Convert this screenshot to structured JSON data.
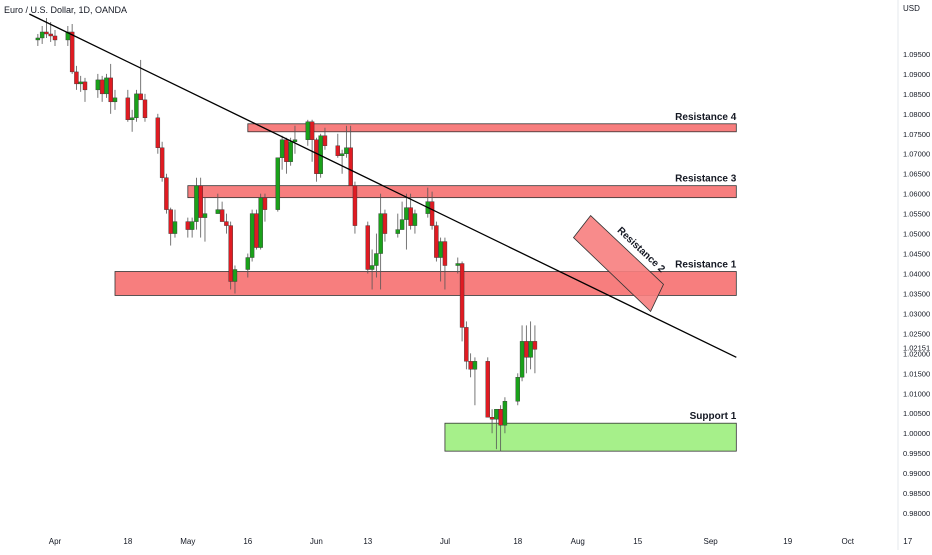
{
  "header": {
    "symbol_label": "Euro / U.S. Dollar, 1D, OANDA",
    "currency_label": "USD"
  },
  "colors": {
    "up": "#1aa11a",
    "down": "#e01b22",
    "resistance_fill": "#f77e7e",
    "resistance_stroke": "#333333",
    "support_fill": "#a6f08a",
    "trendline": "#000000",
    "axis_text": "#131722"
  },
  "chart_data": {
    "type": "candlestick",
    "title": "Euro / U.S. Dollar, 1D, OANDA",
    "ylabel": "USD",
    "ylim": [
      0.976,
      1.1035
    ],
    "y_ticks": [
      "1.09500",
      "1.09000",
      "1.08500",
      "1.08000",
      "1.07500",
      "1.07000",
      "1.06500",
      "1.06000",
      "1.05500",
      "1.05000",
      "1.04500",
      "1.04000",
      "1.03500",
      "1.03000",
      "1.02500",
      "1.02151",
      "1.02000",
      "1.01500",
      "1.01000",
      "1.00500",
      "1.00000",
      "0.99500",
      "0.99000",
      "0.98500",
      "0.98000"
    ],
    "last_price": "1.02151",
    "x_ticks": [
      {
        "label": "Apr",
        "date": "2022-04-01"
      },
      {
        "label": "18",
        "date": "2022-04-18"
      },
      {
        "label": "May",
        "date": "2022-05-02"
      },
      {
        "label": "16",
        "date": "2022-05-16"
      },
      {
        "label": "Jun",
        "date": "2022-06-01"
      },
      {
        "label": "13",
        "date": "2022-06-13"
      },
      {
        "label": "Jul",
        "date": "2022-07-01"
      },
      {
        "label": "18",
        "date": "2022-07-18"
      },
      {
        "label": "Aug",
        "date": "2022-08-01"
      },
      {
        "label": "15",
        "date": "2022-08-15"
      },
      {
        "label": "Sep",
        "date": "2022-09-01"
      },
      {
        "label": "19",
        "date": "2022-09-19"
      },
      {
        "label": "Oct",
        "date": "2022-10-03"
      },
      {
        "label": "17",
        "date": "2022-10-17"
      }
    ],
    "zones": [
      {
        "label": "Resistance 4",
        "kind": "resistance",
        "x_start": "2022-05-16",
        "x_end": "2022-09-07",
        "y_low": 1.0755,
        "y_high": 1.0775
      },
      {
        "label": "Resistance 3",
        "kind": "resistance",
        "x_start": "2022-05-02",
        "x_end": "2022-09-07",
        "y_low": 1.059,
        "y_high": 1.062
      },
      {
        "label": "Resistance 1",
        "kind": "resistance",
        "x_start": "2022-04-15",
        "x_end": "2022-09-07",
        "y_low": 1.0345,
        "y_high": 1.0405
      },
      {
        "label": "Support 1",
        "kind": "support",
        "x_start": "2022-07-01",
        "x_end": "2022-09-07",
        "y_low": 0.9955,
        "y_high": 1.0025
      }
    ],
    "rotated_zone": {
      "label": "Resistance 2",
      "corners": [
        [
          "2022-08-04",
          1.0545
        ],
        [
          "2022-08-21",
          1.0373
        ],
        [
          "2022-08-18",
          1.0305
        ],
        [
          "2022-07-31",
          1.049
        ]
      ]
    },
    "trendline": {
      "start": [
        "2022-03-26",
        1.105
      ],
      "end": [
        "2022-09-07",
        1.019
      ]
    },
    "candles": [
      {
        "date": "2022-03-28",
        "o": 1.0985,
        "h": 1.1,
        "l": 1.097,
        "c": 1.099
      },
      {
        "date": "2022-03-29",
        "o": 1.099,
        "h": 1.102,
        "l": 1.0975,
        "c": 1.1005
      },
      {
        "date": "2022-03-30",
        "o": 1.1005,
        "h": 1.104,
        "l": 1.099,
        "c": 1.1
      },
      {
        "date": "2022-03-31",
        "o": 1.1,
        "h": 1.103,
        "l": 1.098,
        "c": 1.0995
      },
      {
        "date": "2022-04-01",
        "o": 1.0995,
        "h": 1.101,
        "l": 1.097,
        "c": 1.0985
      },
      {
        "date": "2022-04-04",
        "o": 1.0985,
        "h": 1.102,
        "l": 1.097,
        "c": 1.1005
      },
      {
        "date": "2022-04-05",
        "o": 1.1005,
        "h": 1.1025,
        "l": 1.09,
        "c": 1.0905
      },
      {
        "date": "2022-04-06",
        "o": 1.0905,
        "h": 1.092,
        "l": 1.086,
        "c": 1.0875
      },
      {
        "date": "2022-04-07",
        "o": 1.0875,
        "h": 1.0895,
        "l": 1.0855,
        "c": 1.088
      },
      {
        "date": "2022-04-08",
        "o": 1.088,
        "h": 1.089,
        "l": 1.083,
        "c": 1.086
      },
      {
        "date": "2022-04-11",
        "o": 1.086,
        "h": 1.09,
        "l": 1.084,
        "c": 1.0885
      },
      {
        "date": "2022-04-12",
        "o": 1.0885,
        "h": 1.0895,
        "l": 1.083,
        "c": 1.085
      },
      {
        "date": "2022-04-13",
        "o": 1.085,
        "h": 1.09,
        "l": 1.084,
        "c": 1.089
      },
      {
        "date": "2022-04-14",
        "o": 1.089,
        "h": 1.0925,
        "l": 1.08,
        "c": 1.083
      },
      {
        "date": "2022-04-15",
        "o": 1.083,
        "h": 1.086,
        "l": 1.081,
        "c": 1.084
      },
      {
        "date": "2022-04-18",
        "o": 1.084,
        "h": 1.086,
        "l": 1.078,
        "c": 1.0785
      },
      {
        "date": "2022-04-19",
        "o": 1.0785,
        "h": 1.081,
        "l": 1.0755,
        "c": 1.079
      },
      {
        "date": "2022-04-20",
        "o": 1.079,
        "h": 1.086,
        "l": 1.078,
        "c": 1.085
      },
      {
        "date": "2022-04-21",
        "o": 1.085,
        "h": 1.0935,
        "l": 1.084,
        "c": 1.0835
      },
      {
        "date": "2022-04-22",
        "o": 1.0835,
        "h": 1.085,
        "l": 1.078,
        "c": 1.079
      },
      {
        "date": "2022-04-25",
        "o": 1.079,
        "h": 1.08,
        "l": 1.07,
        "c": 1.0715
      },
      {
        "date": "2022-04-26",
        "o": 1.0715,
        "h": 1.073,
        "l": 1.063,
        "c": 1.064
      },
      {
        "date": "2022-04-27",
        "o": 1.064,
        "h": 1.065,
        "l": 1.055,
        "c": 1.056
      },
      {
        "date": "2022-04-28",
        "o": 1.056,
        "h": 1.0565,
        "l": 1.047,
        "c": 1.05
      },
      {
        "date": "2022-04-29",
        "o": 1.05,
        "h": 1.056,
        "l": 1.049,
        "c": 1.053
      },
      {
        "date": "2022-05-02",
        "o": 1.053,
        "h": 1.054,
        "l": 1.049,
        "c": 1.051
      },
      {
        "date": "2022-05-03",
        "o": 1.051,
        "h": 1.054,
        "l": 1.049,
        "c": 1.053
      },
      {
        "date": "2022-05-04",
        "o": 1.053,
        "h": 1.064,
        "l": 1.051,
        "c": 1.062
      },
      {
        "date": "2022-05-05",
        "o": 1.062,
        "h": 1.064,
        "l": 1.049,
        "c": 1.054
      },
      {
        "date": "2022-05-06",
        "o": 1.054,
        "h": 1.059,
        "l": 1.048,
        "c": 1.055
      },
      {
        "date": "2022-05-09",
        "o": 1.055,
        "h": 1.06,
        "l": 1.055,
        "c": 1.056
      },
      {
        "date": "2022-05-10",
        "o": 1.056,
        "h": 1.058,
        "l": 1.053,
        "c": 1.053
      },
      {
        "date": "2022-05-11",
        "o": 1.053,
        "h": 1.055,
        "l": 1.05,
        "c": 1.052
      },
      {
        "date": "2022-05-12",
        "o": 1.052,
        "h": 1.053,
        "l": 1.036,
        "c": 1.038
      },
      {
        "date": "2022-05-13",
        "o": 1.038,
        "h": 1.042,
        "l": 1.035,
        "c": 1.041
      },
      {
        "date": "2022-05-16",
        "o": 1.041,
        "h": 1.045,
        "l": 1.039,
        "c": 1.044
      },
      {
        "date": "2022-05-17",
        "o": 1.044,
        "h": 1.056,
        "l": 1.043,
        "c": 1.055
      },
      {
        "date": "2022-05-18",
        "o": 1.055,
        "h": 1.056,
        "l": 1.046,
        "c": 1.0465
      },
      {
        "date": "2022-05-19",
        "o": 1.0465,
        "h": 1.06,
        "l": 1.046,
        "c": 1.059
      },
      {
        "date": "2022-05-20",
        "o": 1.059,
        "h": 1.06,
        "l": 1.053,
        "c": 1.056
      },
      {
        "date": "2022-05-23",
        "o": 1.056,
        "h": 1.069,
        "l": 1.0555,
        "c": 1.069
      },
      {
        "date": "2022-05-24",
        "o": 1.069,
        "h": 1.0745,
        "l": 1.066,
        "c": 1.0735
      },
      {
        "date": "2022-05-25",
        "o": 1.0735,
        "h": 1.074,
        "l": 1.065,
        "c": 1.068
      },
      {
        "date": "2022-05-26",
        "o": 1.068,
        "h": 1.074,
        "l": 1.067,
        "c": 1.073
      },
      {
        "date": "2022-05-27",
        "o": 1.073,
        "h": 1.077,
        "l": 1.07,
        "c": 1.0735
      },
      {
        "date": "2022-05-30",
        "o": 1.0735,
        "h": 1.0785,
        "l": 1.072,
        "c": 1.078
      },
      {
        "date": "2022-05-31",
        "o": 1.078,
        "h": 1.0785,
        "l": 1.068,
        "c": 1.0735
      },
      {
        "date": "2022-06-01",
        "o": 1.0735,
        "h": 1.074,
        "l": 1.063,
        "c": 1.065
      },
      {
        "date": "2022-06-02",
        "o": 1.065,
        "h": 1.075,
        "l": 1.064,
        "c": 1.0745
      },
      {
        "date": "2022-06-03",
        "o": 1.0745,
        "h": 1.0765,
        "l": 1.071,
        "c": 1.072
      },
      {
        "date": "2022-06-06",
        "o": 1.072,
        "h": 1.075,
        "l": 1.069,
        "c": 1.0695
      },
      {
        "date": "2022-06-07",
        "o": 1.0695,
        "h": 1.071,
        "l": 1.065,
        "c": 1.07
      },
      {
        "date": "2022-06-08",
        "o": 1.07,
        "h": 1.077,
        "l": 1.069,
        "c": 1.0715
      },
      {
        "date": "2022-06-09",
        "o": 1.0715,
        "h": 1.077,
        "l": 1.062,
        "c": 1.062
      },
      {
        "date": "2022-06-10",
        "o": 1.062,
        "h": 1.063,
        "l": 1.05,
        "c": 1.052
      },
      {
        "date": "2022-06-13",
        "o": 1.052,
        "h": 1.053,
        "l": 1.04,
        "c": 1.041
      },
      {
        "date": "2022-06-14",
        "o": 1.041,
        "h": 1.046,
        "l": 1.036,
        "c": 1.042
      },
      {
        "date": "2022-06-15",
        "o": 1.042,
        "h": 1.05,
        "l": 1.039,
        "c": 1.045
      },
      {
        "date": "2022-06-16",
        "o": 1.045,
        "h": 1.06,
        "l": 1.036,
        "c": 1.055
      },
      {
        "date": "2022-06-17",
        "o": 1.055,
        "h": 1.056,
        "l": 1.048,
        "c": 1.05
      },
      {
        "date": "2022-06-20",
        "o": 1.05,
        "h": 1.055,
        "l": 1.049,
        "c": 1.051
      },
      {
        "date": "2022-06-21",
        "o": 1.051,
        "h": 1.058,
        "l": 1.051,
        "c": 1.0535
      },
      {
        "date": "2022-06-22",
        "o": 1.0535,
        "h": 1.06,
        "l": 1.046,
        "c": 1.0565
      },
      {
        "date": "2022-06-23",
        "o": 1.0565,
        "h": 1.06,
        "l": 1.051,
        "c": 1.052
      },
      {
        "date": "2022-06-24",
        "o": 1.052,
        "h": 1.056,
        "l": 1.05,
        "c": 1.055
      },
      {
        "date": "2022-06-27",
        "o": 1.055,
        "h": 1.0615,
        "l": 1.054,
        "c": 1.058
      },
      {
        "date": "2022-06-28",
        "o": 1.058,
        "h": 1.0605,
        "l": 1.051,
        "c": 1.052
      },
      {
        "date": "2022-06-29",
        "o": 1.052,
        "h": 1.053,
        "l": 1.043,
        "c": 1.044
      },
      {
        "date": "2022-06-30",
        "o": 1.044,
        "h": 1.049,
        "l": 1.038,
        "c": 1.048
      },
      {
        "date": "2022-07-01",
        "o": 1.048,
        "h": 1.049,
        "l": 1.036,
        "c": 1.042
      },
      {
        "date": "2022-07-04",
        "o": 1.042,
        "h": 1.044,
        "l": 1.04,
        "c": 1.0425
      },
      {
        "date": "2022-07-05",
        "o": 1.0425,
        "h": 1.043,
        "l": 1.023,
        "c": 1.0265
      },
      {
        "date": "2022-07-06",
        "o": 1.0265,
        "h": 1.028,
        "l": 1.016,
        "c": 1.018
      },
      {
        "date": "2022-07-07",
        "o": 1.018,
        "h": 1.02,
        "l": 1.014,
        "c": 1.016
      },
      {
        "date": "2022-07-08",
        "o": 1.016,
        "h": 1.019,
        "l": 1.007,
        "c": 1.018
      },
      {
        "date": "2022-07-11",
        "o": 1.018,
        "h": 1.019,
        "l": 1.004,
        "c": 1.004
      },
      {
        "date": "2022-07-12",
        "o": 1.004,
        "h": 1.006,
        "l": 1.0,
        "c": 1.0035
      },
      {
        "date": "2022-07-13",
        "o": 1.0035,
        "h": 1.006,
        "l": 0.996,
        "c": 1.006
      },
      {
        "date": "2022-07-14",
        "o": 1.006,
        "h": 1.007,
        "l": 0.9955,
        "c": 1.002
      },
      {
        "date": "2022-07-15",
        "o": 1.002,
        "h": 1.009,
        "l": 1.0,
        "c": 1.008
      },
      {
        "date": "2022-07-18",
        "o": 1.008,
        "h": 1.015,
        "l": 1.007,
        "c": 1.014
      },
      {
        "date": "2022-07-19",
        "o": 1.014,
        "h": 1.027,
        "l": 1.013,
        "c": 1.023
      },
      {
        "date": "2022-07-20",
        "o": 1.023,
        "h": 1.027,
        "l": 1.015,
        "c": 1.019
      },
      {
        "date": "2022-07-21",
        "o": 1.019,
        "h": 1.028,
        "l": 1.016,
        "c": 1.023
      },
      {
        "date": "2022-07-22",
        "o": 1.023,
        "h": 1.027,
        "l": 1.015,
        "c": 1.021
      }
    ]
  }
}
